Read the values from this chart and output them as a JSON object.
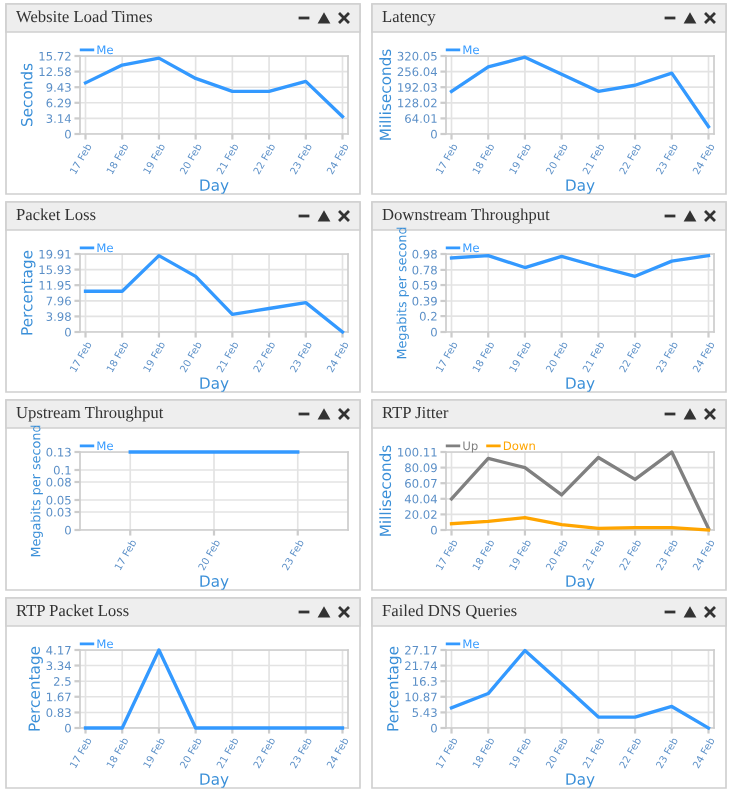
{
  "chart_data": [
    {
      "type": "line",
      "title": "Website Load Times",
      "xlabel": "Day",
      "ylabel": "Seconds",
      "categories": [
        "17 Feb",
        "18 Feb",
        "19 Feb",
        "20 Feb",
        "21 Feb",
        "22 Feb",
        "23 Feb",
        "24 Feb"
      ],
      "series": [
        {
          "name": "Me",
          "color": "#3399ff",
          "values": [
            10.3,
            13.9,
            15.3,
            11.2,
            8.6,
            8.6,
            10.6,
            3.5
          ]
        }
      ],
      "ylim": [
        0,
        15.72
      ],
      "yticks": [
        0,
        3.14,
        6.29,
        9.43,
        12.58,
        15.72
      ],
      "grid": true,
      "legend": "top left"
    },
    {
      "type": "line",
      "title": "Latency",
      "xlabel": "Day",
      "ylabel": "Milliseconds",
      "categories": [
        "17 Feb",
        "18 Feb",
        "19 Feb",
        "20 Feb",
        "21 Feb",
        "22 Feb",
        "23 Feb",
        "24 Feb"
      ],
      "series": [
        {
          "name": "Me",
          "color": "#3399ff",
          "values": [
            175,
            275,
            315,
            245,
            175,
            200,
            250,
            30
          ]
        }
      ],
      "ylim": [
        0,
        320.05
      ],
      "yticks": [
        0,
        64.01,
        128.02,
        192.03,
        256.04,
        320.05
      ],
      "grid": true,
      "legend": "top left"
    },
    {
      "type": "line",
      "title": "Packet Loss",
      "xlabel": "Day",
      "ylabel": "Percentage",
      "categories": [
        "17 Feb",
        "18 Feb",
        "19 Feb",
        "20 Feb",
        "21 Feb",
        "22 Feb",
        "23 Feb",
        "24 Feb"
      ],
      "series": [
        {
          "name": "Me",
          "color": "#3399ff",
          "values": [
            10.4,
            10.4,
            19.5,
            14.2,
            4.5,
            6.0,
            7.5,
            0
          ]
        }
      ],
      "ylim": [
        0,
        19.91
      ],
      "yticks": [
        0,
        3.98,
        7.96,
        11.95,
        15.93,
        19.91
      ],
      "grid": true,
      "legend": "top left"
    },
    {
      "type": "line",
      "title": "Downstream Throughput",
      "xlabel": "Day",
      "ylabel": "Megabits per second",
      "categories": [
        "17 Feb",
        "18 Feb",
        "19 Feb",
        "20 Feb",
        "21 Feb",
        "22 Feb",
        "23 Feb",
        "24 Feb"
      ],
      "series": [
        {
          "name": "Me",
          "color": "#3399ff",
          "values": [
            0.93,
            0.96,
            0.81,
            0.95,
            0.82,
            0.7,
            0.89,
            0.96
          ]
        }
      ],
      "ylim": [
        0,
        0.98
      ],
      "yticks": [
        0,
        0.2,
        0.39,
        0.59,
        0.78,
        0.98
      ],
      "grid": true,
      "legend": "top left"
    },
    {
      "type": "line",
      "title": "Upstream Throughput",
      "xlabel": "Day",
      "ylabel": "Megabits per second",
      "categories": [
        "17 Feb",
        "20 Feb",
        "23 Feb"
      ],
      "series": [
        {
          "name": "Me",
          "color": "#3399ff",
          "values": [
            0.13,
            0.13,
            0.13
          ]
        }
      ],
      "ylim": [
        0,
        0.13
      ],
      "yticks": [
        0,
        0.03,
        0.05,
        0.08,
        0.1,
        0.13
      ],
      "grid": true,
      "legend": "top left"
    },
    {
      "type": "line",
      "title": "RTP Jitter",
      "xlabel": "Day",
      "ylabel": "Milliseconds",
      "categories": [
        "17 Feb",
        "18 Feb",
        "19 Feb",
        "20 Feb",
        "21 Feb",
        "22 Feb",
        "23 Feb",
        "24 Feb"
      ],
      "series": [
        {
          "name": "Up",
          "color": "#808080",
          "values": [
            40,
            92,
            80,
            45,
            93,
            65,
            100,
            2
          ]
        },
        {
          "name": "Down",
          "color": "#ffa500",
          "values": [
            8,
            11,
            16,
            7,
            2,
            3,
            3,
            0
          ]
        }
      ],
      "ylim": [
        0,
        100.11
      ],
      "yticks": [
        0,
        20.02,
        40.04,
        60.07,
        80.09,
        100.11
      ],
      "grid": true,
      "legend": "top left"
    },
    {
      "type": "line",
      "title": "RTP Packet Loss",
      "xlabel": "Day",
      "ylabel": "Percentage",
      "categories": [
        "17 Feb",
        "18 Feb",
        "19 Feb",
        "20 Feb",
        "21 Feb",
        "22 Feb",
        "23 Feb",
        "24 Feb"
      ],
      "series": [
        {
          "name": "Me",
          "color": "#3399ff",
          "values": [
            0,
            0,
            4.17,
            0,
            0,
            0,
            0,
            0
          ]
        }
      ],
      "ylim": [
        0,
        4.17
      ],
      "yticks": [
        0,
        0.83,
        1.67,
        2.5,
        3.34,
        4.17
      ],
      "grid": true,
      "legend": "top left"
    },
    {
      "type": "line",
      "title": "Failed DNS Queries",
      "xlabel": "Day",
      "ylabel": "Percentage",
      "categories": [
        "17 Feb",
        "18 Feb",
        "19 Feb",
        "20 Feb",
        "21 Feb",
        "22 Feb",
        "23 Feb",
        "24 Feb"
      ],
      "series": [
        {
          "name": "Me",
          "color": "#3399ff",
          "values": [
            7,
            12,
            27,
            15.5,
            3.8,
            3.8,
            7.5,
            0
          ]
        }
      ],
      "ylim": [
        0,
        27.17
      ],
      "yticks": [
        0,
        5.43,
        10.87,
        16.3,
        21.74,
        27.17
      ],
      "grid": true,
      "legend": "top left"
    }
  ]
}
